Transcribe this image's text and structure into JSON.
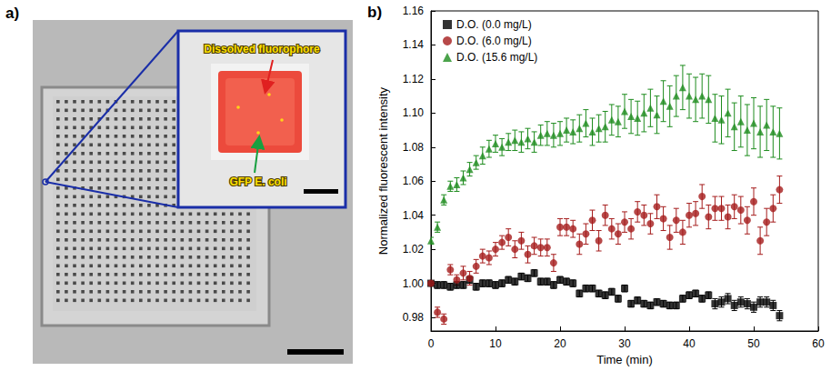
{
  "figure": {
    "panel_label": "a)",
    "annotations": [
      "Dissolved fluorophore",
      "GFP E. coli"
    ]
  },
  "chart_data": {
    "type": "scatter",
    "panel_label": "b)",
    "x_label": "Time (min)",
    "y_label": "Normalized fluorescent intensity",
    "xlim": [
      0,
      60
    ],
    "xticks": [
      0,
      10,
      20,
      30,
      40,
      50,
      60
    ],
    "ylim": [
      0.972,
      1.16
    ],
    "yticks": [
      0.98,
      {
        "value": 1,
        "label": "1.00"
      },
      1.02,
      1.04,
      1.06,
      1.08,
      {
        "value": 1.1,
        "label": "1.10"
      },
      1.12,
      1.14,
      1.16
    ],
    "grid": false,
    "legend": "top-left",
    "x": [
      0,
      1,
      2,
      3,
      4,
      5,
      6,
      7,
      8,
      9,
      10,
      11,
      12,
      13,
      14,
      15,
      16,
      17,
      18,
      19,
      20,
      21,
      22,
      23,
      24,
      25,
      26,
      27,
      28,
      29,
      30,
      31,
      32,
      33,
      34,
      35,
      36,
      37,
      38,
      39,
      40,
      41,
      42,
      43,
      44,
      45,
      46,
      47,
      48,
      49,
      50,
      51,
      52,
      53,
      54
    ],
    "series": [
      {
        "name": "D.O. (0.0 mg/L)",
        "color": "#000000",
        "marker": "square",
        "values": [
          1.0,
          0.999,
          0.999,
          0.998,
          0.999,
          0.999,
          1.002,
          0.998,
          1.0,
          1.0,
          0.999,
          1.0,
          1.002,
          1.001,
          1.004,
          1.003,
          1.006,
          1.001,
          1.001,
          0.999,
          1.002,
          1.001,
          1.0,
          0.994,
          0.997,
          0.997,
          0.994,
          0.993,
          0.995,
          0.991,
          0.997,
          0.988,
          0.99,
          0.988,
          0.987,
          0.989,
          0.988,
          0.987,
          0.987,
          0.991,
          0.993,
          0.994,
          0.991,
          0.993,
          0.988,
          0.989,
          0.991,
          0.987,
          0.989,
          0.988,
          0.986,
          0.989,
          0.989,
          0.987,
          0.981
        ],
        "errors": [
          0.001,
          0.002,
          0.002,
          0.002,
          0.002,
          0.002,
          0.002,
          0.002,
          0.002,
          0.002,
          0.002,
          0.002,
          0.002,
          0.002,
          0.002,
          0.002,
          0.002,
          0.002,
          0.002,
          0.002,
          0.002,
          0.002,
          0.002,
          0.002,
          0.002,
          0.002,
          0.002,
          0.002,
          0.002,
          0.002,
          0.002,
          0.002,
          0.002,
          0.002,
          0.002,
          0.002,
          0.002,
          0.002,
          0.002,
          0.002,
          0.002,
          0.002,
          0.002,
          0.002,
          0.003,
          0.003,
          0.003,
          0.003,
          0.003,
          0.003,
          0.003,
          0.003,
          0.003,
          0.003,
          0.003
        ]
      },
      {
        "name": "D.O. (6.0 mg/L)",
        "color": "#a51c1c",
        "marker": "circle",
        "values": [
          1.0,
          0.983,
          0.979,
          1.008,
          1.002,
          1.006,
          1.003,
          1.01,
          1.016,
          1.015,
          1.02,
          1.024,
          1.027,
          1.02,
          1.025,
          1.017,
          1.022,
          1.021,
          1.021,
          1.012,
          1.033,
          1.033,
          1.032,
          1.023,
          1.029,
          1.037,
          1.025,
          1.04,
          1.032,
          1.029,
          1.036,
          1.032,
          1.042,
          1.04,
          1.035,
          1.045,
          1.038,
          1.027,
          1.037,
          1.03,
          1.04,
          1.041,
          1.051,
          1.039,
          1.044,
          1.044,
          1.039,
          1.045,
          1.043,
          1.037,
          1.048,
          1.025,
          1.036,
          1.044,
          1.055
        ],
        "errors": [
          0.001,
          0.003,
          0.003,
          0.003,
          0.003,
          0.004,
          0.004,
          0.004,
          0.004,
          0.004,
          0.004,
          0.004,
          0.005,
          0.005,
          0.005,
          0.005,
          0.005,
          0.005,
          0.005,
          0.005,
          0.005,
          0.005,
          0.005,
          0.006,
          0.006,
          0.006,
          0.006,
          0.006,
          0.006,
          0.006,
          0.006,
          0.006,
          0.006,
          0.006,
          0.006,
          0.007,
          0.007,
          0.007,
          0.007,
          0.007,
          0.007,
          0.007,
          0.007,
          0.007,
          0.007,
          0.007,
          0.007,
          0.007,
          0.008,
          0.008,
          0.008,
          0.008,
          0.008,
          0.008,
          0.008
        ]
      },
      {
        "name": "D.O. (15.6 mg/L)",
        "color": "#1e8c1e",
        "marker": "triangle",
        "values": [
          1.025,
          1.033,
          1.049,
          1.057,
          1.058,
          1.062,
          1.067,
          1.071,
          1.075,
          1.079,
          1.082,
          1.08,
          1.083,
          1.084,
          1.083,
          1.085,
          1.083,
          1.087,
          1.088,
          1.087,
          1.088,
          1.09,
          1.089,
          1.091,
          1.094,
          1.089,
          1.091,
          1.092,
          1.096,
          1.095,
          1.101,
          1.098,
          1.097,
          1.1,
          1.103,
          1.099,
          1.107,
          1.104,
          1.11,
          1.115,
          1.11,
          1.108,
          1.11,
          1.108,
          1.097,
          1.096,
          1.1,
          1.092,
          1.095,
          1.09,
          1.094,
          1.089,
          1.093,
          1.089,
          1.088
        ],
        "errors": [
          0.002,
          0.003,
          0.003,
          0.003,
          0.004,
          0.004,
          0.004,
          0.004,
          0.005,
          0.005,
          0.005,
          0.005,
          0.005,
          0.006,
          0.006,
          0.006,
          0.006,
          0.006,
          0.007,
          0.007,
          0.007,
          0.007,
          0.007,
          0.008,
          0.008,
          0.008,
          0.008,
          0.009,
          0.009,
          0.009,
          0.01,
          0.01,
          0.01,
          0.011,
          0.011,
          0.011,
          0.012,
          0.012,
          0.012,
          0.013,
          0.013,
          0.013,
          0.013,
          0.014,
          0.014,
          0.014,
          0.014,
          0.014,
          0.015,
          0.015,
          0.015,
          0.015,
          0.015,
          0.015,
          0.015
        ]
      }
    ]
  }
}
